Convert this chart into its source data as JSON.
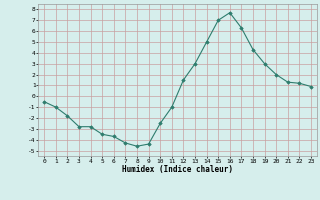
{
  "x": [
    0,
    1,
    2,
    3,
    4,
    5,
    6,
    7,
    8,
    9,
    10,
    11,
    12,
    13,
    14,
    15,
    16,
    17,
    18,
    19,
    20,
    21,
    22,
    23
  ],
  "y": [
    -0.5,
    -1.0,
    -1.8,
    -2.8,
    -2.8,
    -3.5,
    -3.7,
    -4.3,
    -4.6,
    -4.4,
    -2.5,
    -1.0,
    1.5,
    3.0,
    5.0,
    7.0,
    7.7,
    6.3,
    4.3,
    3.0,
    2.0,
    1.3,
    1.2,
    0.9
  ],
  "line_color": "#2e7d6e",
  "marker_color": "#2e7d6e",
  "bg_color": "#d6eeec",
  "grid_color": "#c8a0a0",
  "xlabel": "Humidex (Indice chaleur)",
  "xlim": [
    -0.5,
    23.5
  ],
  "ylim": [
    -5.5,
    8.5
  ],
  "yticks": [
    -5,
    -4,
    -3,
    -2,
    -1,
    0,
    1,
    2,
    3,
    4,
    5,
    6,
    7,
    8
  ],
  "xticks": [
    0,
    1,
    2,
    3,
    4,
    5,
    6,
    7,
    8,
    9,
    10,
    11,
    12,
    13,
    14,
    15,
    16,
    17,
    18,
    19,
    20,
    21,
    22,
    23
  ],
  "figsize": [
    3.2,
    2.0
  ],
  "dpi": 100
}
